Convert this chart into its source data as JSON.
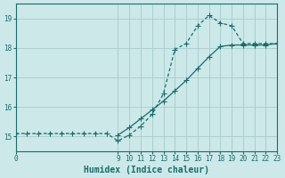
{
  "xlabel": "Humidex (Indice chaleur)",
  "bg_color": "#cce8e8",
  "line_color": "#1a6b6b",
  "grid_color": "#aacfcf",
  "axis_color": "#1a6b6b",
  "x_curve": [
    0,
    1,
    2,
    3,
    4,
    5,
    6,
    7,
    8,
    9,
    10,
    11,
    12,
    13,
    14,
    15,
    16,
    17,
    18,
    19,
    20,
    21,
    22,
    23
  ],
  "y_curve": [
    15.1,
    15.1,
    15.1,
    15.1,
    15.1,
    15.1,
    15.1,
    15.1,
    15.1,
    14.85,
    15.05,
    15.35,
    15.75,
    16.45,
    17.95,
    18.15,
    18.75,
    19.1,
    18.85,
    18.75,
    18.15,
    18.15,
    18.15,
    18.15
  ],
  "x_straight": [
    9,
    10,
    11,
    12,
    13,
    14,
    15,
    16,
    17,
    18,
    19,
    20,
    21,
    22,
    23
  ],
  "y_straight": [
    15.05,
    15.3,
    15.6,
    15.9,
    16.2,
    16.55,
    16.9,
    17.3,
    17.7,
    18.05,
    18.1,
    18.1,
    18.1,
    18.1,
    18.15
  ],
  "xlim": [
    0,
    23
  ],
  "ylim": [
    14.5,
    19.5
  ],
  "yticks": [
    15,
    16,
    17,
    18,
    19
  ],
  "xtick_positions": [
    0,
    9,
    10,
    11,
    12,
    13,
    14,
    15,
    16,
    17,
    18,
    19,
    20,
    21,
    22,
    23
  ],
  "xtick_labels": [
    "0",
    "9",
    "10",
    "11",
    "12",
    "13",
    "14",
    "15",
    "16",
    "17",
    "18",
    "19",
    "20",
    "21",
    "22",
    "23"
  ],
  "marker_size": 2.0,
  "line_width": 0.9,
  "tick_fontsize": 5.5,
  "xlabel_fontsize": 7
}
